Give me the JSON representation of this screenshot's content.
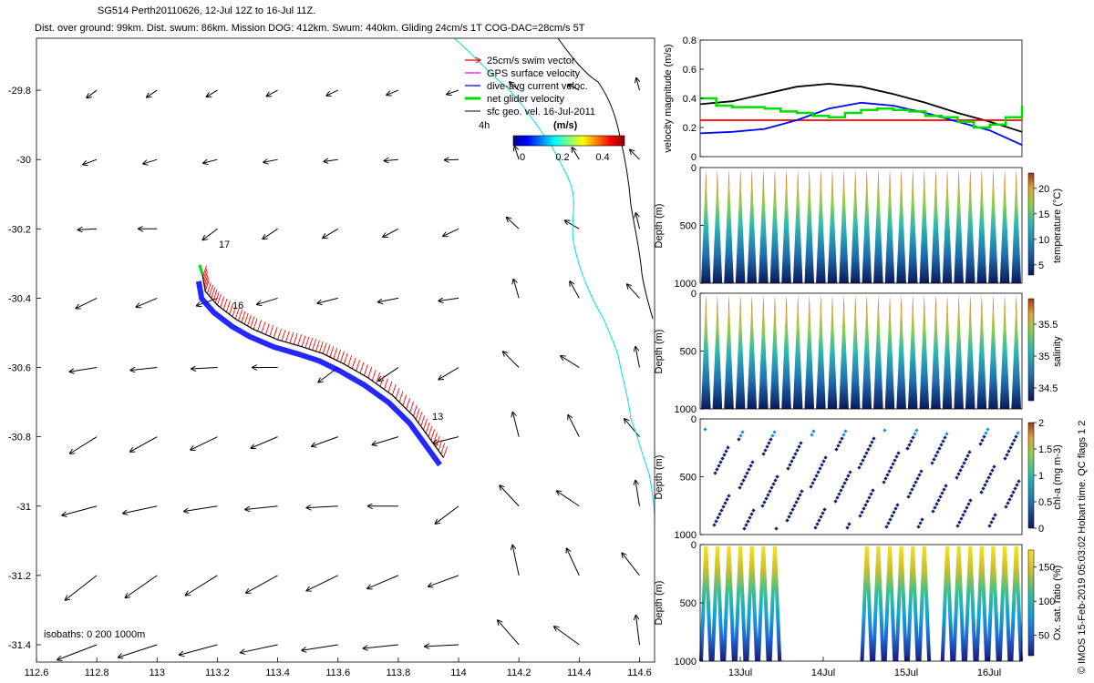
{
  "header": {
    "title_line1": "SG514 Perth20110626, 12-Jul 12Z to 16-Jul 11Z.",
    "title_line2": "Dist. over ground: 99km. Dist. swum: 86km. Mission DOG: 412km. Swum: 440km. Gliding 24cm/s 1T COG-DAC=28cm/s 5T"
  },
  "side_note": "© IMOS 15-Feb-2019 05:03:02 Hobart time. QC flags 1  2",
  "colors": {
    "swim_vector": "#ff0000",
    "gps_velocity": "#ff00ff",
    "dive_avg_current": "#0000ff",
    "net_glider_velocity": "#00dd00",
    "sfc_geo_velocity": "#000000",
    "isobath": "#00e0e0"
  },
  "chart_data": [
    {
      "type": "quiver-map",
      "title": "",
      "xlabel": "",
      "ylabel": "",
      "x_ticks": [
        "112.6",
        "112.8",
        "113",
        "113.2",
        "113.4",
        "113.6",
        "113.8",
        "114",
        "114.2",
        "114.4",
        "114.6"
      ],
      "y_ticks": [
        "-29.8",
        "-30",
        "-30.2",
        "-30.4",
        "-30.6",
        "-30.8",
        "-31",
        "-31.2",
        "-31.4"
      ],
      "xlim": [
        112.6,
        114.65
      ],
      "ylim": [
        -31.45,
        -29.65
      ],
      "legend": [
        "25cm/s swim vector",
        "GPS surface velocity",
        "dive-avg current veloc.",
        "net glider velocity",
        "sfc geo. vel. 16-Jul-2011"
      ],
      "colorbar": {
        "label": "(m/s)",
        "ticks": [
          "0",
          "0.2",
          "0.4"
        ],
        "range": [
          0,
          0.5
        ]
      },
      "time_label": "4h",
      "day_labels": [
        {
          "text": "17",
          "lon": 113.2,
          "lat": -30.28
        },
        {
          "text": "16",
          "lon": 113.25,
          "lat": -30.43
        },
        {
          "text": "13",
          "lon": 113.93,
          "lat": -30.77
        }
      ],
      "isobaths_label": "isobaths: 0   200  1000m",
      "track": {
        "lon": [
          113.95,
          113.9,
          113.85,
          113.78,
          113.7,
          113.62,
          113.55,
          113.48,
          113.4,
          113.32,
          113.26,
          113.2,
          113.16,
          113.15
        ],
        "lat": [
          -30.86,
          -30.8,
          -30.74,
          -30.68,
          -30.63,
          -30.59,
          -30.56,
          -30.54,
          -30.52,
          -30.49,
          -30.46,
          -30.42,
          -30.38,
          -30.33
        ]
      },
      "vectors": {
        "lon": [
          112.6,
          112.8,
          113.0,
          113.2,
          113.4,
          113.6,
          113.8,
          114.0,
          114.2,
          114.4,
          114.6
        ],
        "lat": [
          -29.8,
          -30.0,
          -30.2,
          -30.4,
          -30.6,
          -30.8,
          -31.0,
          -31.2,
          -31.4
        ]
      }
    },
    {
      "type": "line",
      "title": "",
      "xlabel": "",
      "ylabel": "velocity magnitude (m/s)",
      "y_ticks": [
        "0",
        "0.2",
        "0.4",
        "0.6",
        "0.8"
      ],
      "ylim": [
        0,
        0.8
      ],
      "xlim": [
        0,
        1
      ],
      "series": [
        {
          "color": "#000000",
          "x": [
            0,
            0.1,
            0.2,
            0.3,
            0.4,
            0.5,
            0.6,
            0.7,
            0.8,
            0.9,
            1.0
          ],
          "y": [
            0.36,
            0.38,
            0.43,
            0.48,
            0.5,
            0.48,
            0.43,
            0.37,
            0.3,
            0.24,
            0.17
          ]
        },
        {
          "color": "#ff0000",
          "x": [
            0,
            1.0
          ],
          "y": [
            0.25,
            0.25
          ]
        },
        {
          "color": "#0000ff",
          "x": [
            0,
            0.1,
            0.2,
            0.3,
            0.4,
            0.5,
            0.6,
            0.7,
            0.8,
            0.9,
            1.0
          ],
          "y": [
            0.16,
            0.17,
            0.19,
            0.25,
            0.33,
            0.37,
            0.35,
            0.3,
            0.24,
            0.18,
            0.08
          ]
        },
        {
          "color": "#00dd00",
          "x": [
            0,
            0.05,
            0.1,
            0.15,
            0.2,
            0.25,
            0.3,
            0.35,
            0.4,
            0.45,
            0.5,
            0.55,
            0.6,
            0.65,
            0.7,
            0.75,
            0.8,
            0.85,
            0.9,
            0.95,
            1.0
          ],
          "y": [
            0.4,
            0.35,
            0.34,
            0.34,
            0.33,
            0.31,
            0.3,
            0.28,
            0.27,
            0.3,
            0.32,
            0.33,
            0.32,
            0.31,
            0.28,
            0.27,
            0.24,
            0.2,
            0.22,
            0.27,
            0.35
          ]
        }
      ]
    },
    {
      "type": "heatmap",
      "ylabel": "Depth (m)",
      "y_ticks": [
        "0",
        "500",
        "1000"
      ],
      "ylim": [
        1000,
        0
      ],
      "colorbar_label": "temperature (°C)",
      "colorbar_ticks": [
        "5",
        "10",
        "15",
        "20"
      ],
      "colorbar_range": [
        3,
        23
      ],
      "n_profiles": 28
    },
    {
      "type": "heatmap",
      "ylabel": "Depth (m)",
      "y_ticks": [
        "0",
        "500",
        "1000"
      ],
      "ylim": [
        1000,
        0
      ],
      "colorbar_label": "salinity",
      "colorbar_ticks": [
        "34.5",
        "35",
        "35.5"
      ],
      "colorbar_range": [
        34.3,
        35.9
      ],
      "n_profiles": 28
    },
    {
      "type": "scatter",
      "ylabel": "Depth (m)",
      "y_ticks": [
        "0",
        "500",
        "1000"
      ],
      "ylim": [
        1000,
        0
      ],
      "colorbar_label": "chl-a (mg m-3)",
      "colorbar_ticks": [
        "0",
        "0.5",
        "1",
        "1.5",
        "2"
      ],
      "colorbar_range": [
        0,
        2
      ]
    },
    {
      "type": "heatmap",
      "ylabel": "Depth (m)",
      "y_ticks": [
        "0",
        "500",
        "1000"
      ],
      "ylim": [
        1000,
        0
      ],
      "colorbar_label": "Ox. sat. ratio (%)",
      "colorbar_ticks": [
        "50",
        "100",
        "150"
      ],
      "colorbar_range": [
        20,
        175
      ],
      "x_ticks": [
        "13Jul",
        "14Jul",
        "15Jul",
        "16Jul"
      ]
    }
  ]
}
